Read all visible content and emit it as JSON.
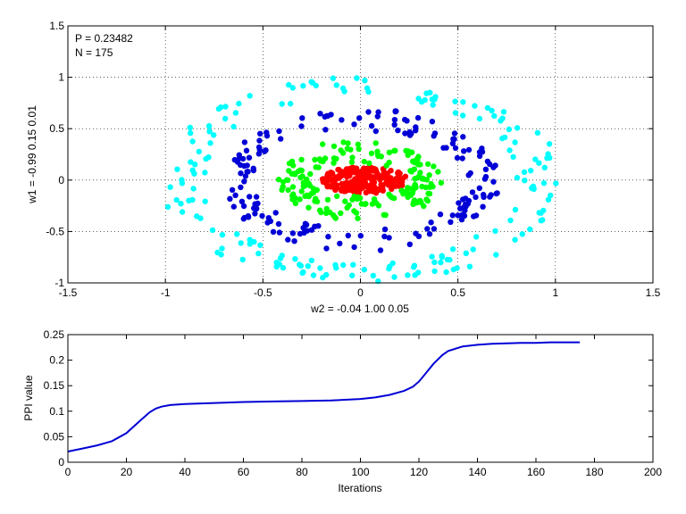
{
  "chart_data": [
    {
      "type": "scatter",
      "xlabel": "w2 = -0.04  1.00  0.05",
      "ylabel": "w1 = -0.99  0.15  0.01",
      "xlim": [
        -1.5,
        1.5
      ],
      "ylim": [
        -1,
        1.5
      ],
      "xticks": [
        "-1.5",
        "-1",
        "-0.5",
        "0",
        "0.5",
        "1",
        "1.5"
      ],
      "yticks": [
        "-1",
        "-0.5",
        "0",
        "0.5",
        "1",
        "1.5"
      ],
      "grid": true,
      "annotations": [
        "P = 0.23482",
        "N = 175"
      ],
      "series": [
        {
          "color": "#ff0000",
          "shape": "filled-disk",
          "cx": 0.02,
          "cy": 0.0,
          "rx_min": 0.0,
          "rx_max": 0.22,
          "ry_min": 0.0,
          "ry_max": 0.13,
          "count": 220
        },
        {
          "color": "#00ff00",
          "shape": "ring",
          "cx": 0.0,
          "cy": 0.0,
          "rx_min": 0.27,
          "rx_max": 0.42,
          "ry_min": 0.16,
          "ry_max": 0.4,
          "count": 175
        },
        {
          "color": "#0000d6",
          "shape": "ring",
          "cx": 0.0,
          "cy": 0.0,
          "rx_min": 0.55,
          "rx_max": 0.72,
          "ry_min": 0.48,
          "ry_max": 0.7,
          "count": 175
        },
        {
          "color": "#00ffff",
          "shape": "ring",
          "cx": 0.0,
          "cy": 0.0,
          "rx_min": 0.8,
          "rx_max": 1.05,
          "ry_min": 0.82,
          "ry_max": 1.0,
          "count": 175
        }
      ]
    },
    {
      "type": "line",
      "xlabel": "Iterations",
      "ylabel": "PPI value",
      "xlim": [
        0,
        200
      ],
      "ylim": [
        0,
        0.25
      ],
      "xticks": [
        "0",
        "20",
        "40",
        "60",
        "80",
        "100",
        "120",
        "140",
        "160",
        "180",
        "200"
      ],
      "yticks": [
        "0",
        "0.05",
        "0.1",
        "0.15",
        "0.2",
        "0.25"
      ],
      "grid": false,
      "series": [
        {
          "color": "#0000d6",
          "x": [
            0,
            5,
            10,
            15,
            20,
            25,
            28,
            30,
            32,
            35,
            40,
            50,
            60,
            70,
            80,
            90,
            100,
            105,
            110,
            115,
            118,
            120,
            122,
            125,
            128,
            130,
            135,
            140,
            145,
            150,
            155,
            160,
            165,
            170,
            175
          ],
          "y": [
            0.021,
            0.027,
            0.033,
            0.041,
            0.057,
            0.083,
            0.098,
            0.105,
            0.109,
            0.112,
            0.114,
            0.116,
            0.118,
            0.119,
            0.12,
            0.121,
            0.124,
            0.127,
            0.132,
            0.14,
            0.148,
            0.158,
            0.172,
            0.193,
            0.21,
            0.218,
            0.227,
            0.23,
            0.232,
            0.233,
            0.234,
            0.234,
            0.235,
            0.235,
            0.235
          ]
        }
      ]
    }
  ]
}
